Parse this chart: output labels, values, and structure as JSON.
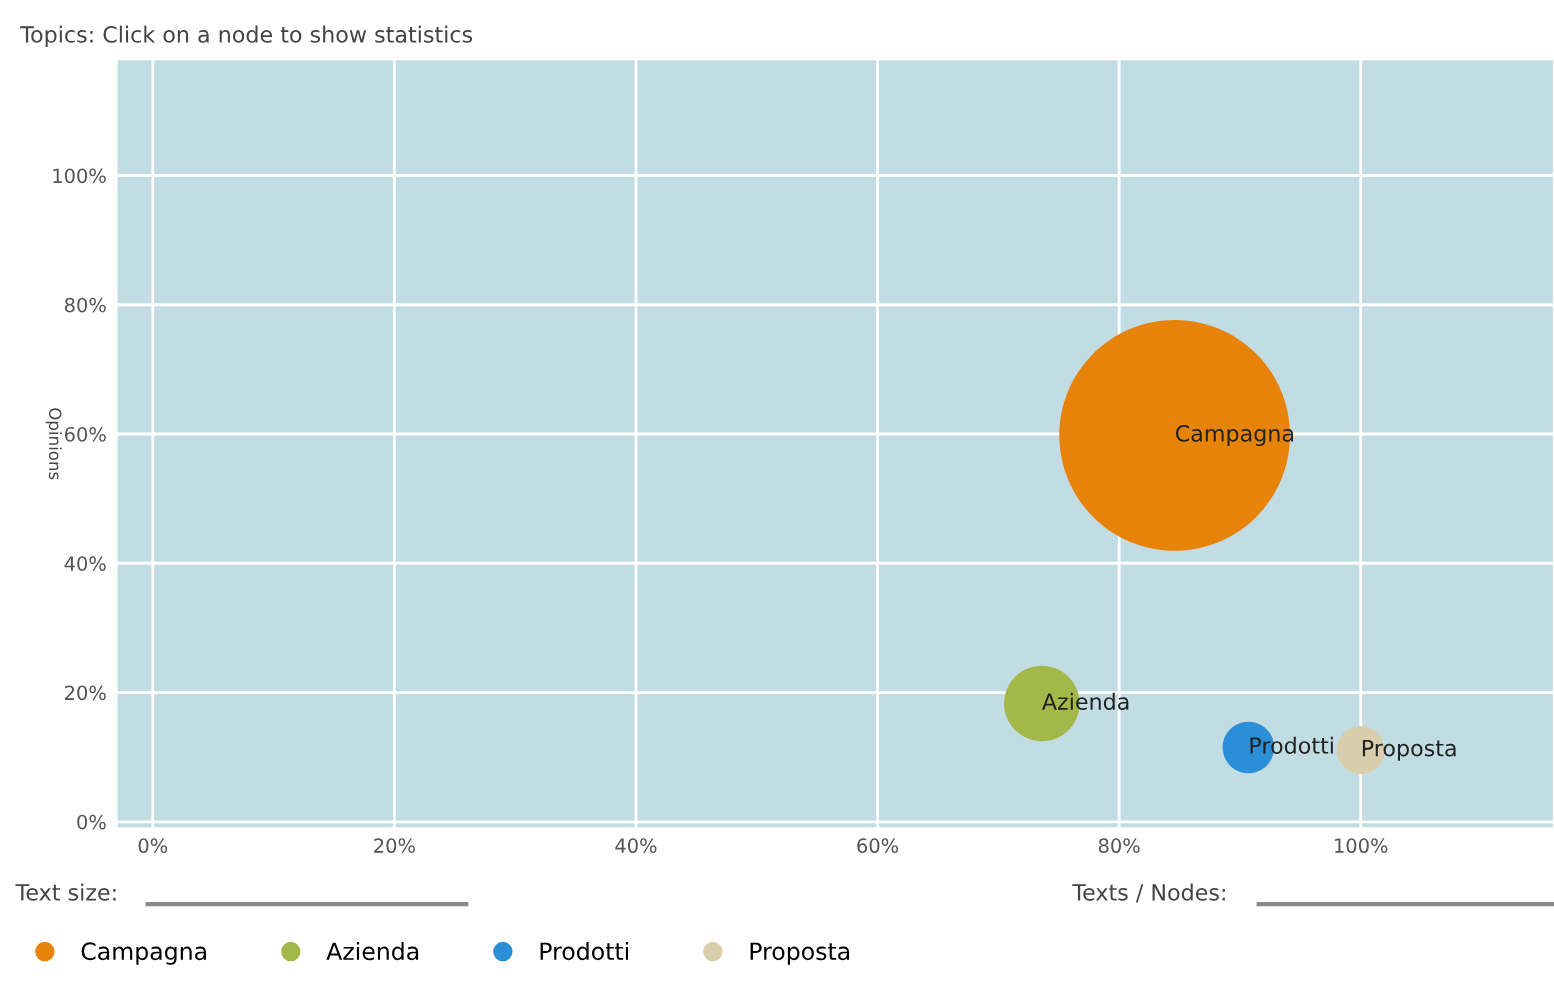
{
  "chart_data": {
    "type": "bubble",
    "title": "Topics: Click on a node to show statistics",
    "ylabel": "Opinions",
    "annotations": [
      "Text size:",
      "Texts / Nodes:"
    ],
    "series": [
      {
        "name": "Campagna",
        "color": "#e8830a",
        "x": [
          84.6
        ],
        "values": [
          59.8
        ],
        "sizes": [
          1
        ]
      },
      {
        "name": "Azienda",
        "color": "#a4b84a",
        "x": [
          73.6
        ],
        "values": [
          18.3
        ],
        "sizes": [
          0.107
        ]
      },
      {
        "name": "Prodotti",
        "color": "#2a8fd6",
        "x": [
          90.7
        ],
        "values": [
          11.5
        ],
        "sizes": [
          0.05
        ]
      },
      {
        "name": "Proposta",
        "color": "#d9ceab",
        "x": [
          100
        ],
        "values": [
          11.1
        ],
        "sizes": [
          0.043
        ]
      }
    ],
    "xlim": [
      -3,
      116
    ],
    "ylim": [
      -1,
      118
    ],
    "xticks": [
      {
        "value": 0,
        "label": "0%"
      },
      {
        "value": 20,
        "label": "20%"
      },
      {
        "value": 40,
        "label": "40%"
      },
      {
        "value": 60,
        "label": "60%"
      },
      {
        "value": 80,
        "label": "80%"
      },
      {
        "value": 100,
        "label": "100%"
      }
    ],
    "yticks": [
      {
        "value": 0,
        "label": "0%"
      },
      {
        "value": 20,
        "label": "20%"
      },
      {
        "value": 40,
        "label": "40%"
      },
      {
        "value": 60,
        "label": "60%"
      },
      {
        "value": 80,
        "label": "80%"
      },
      {
        "value": 100,
        "label": "100%"
      }
    ],
    "grid": true,
    "legend": "bottom"
  }
}
